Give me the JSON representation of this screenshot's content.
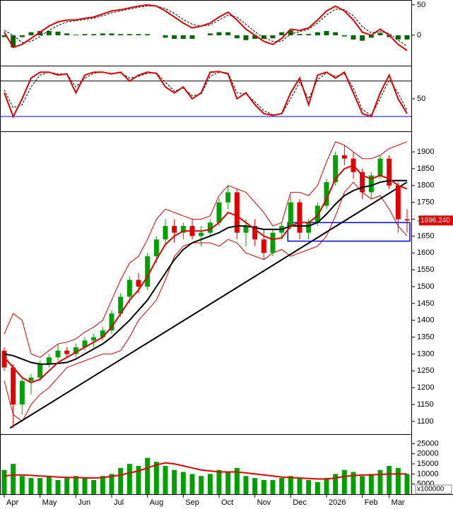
{
  "chart_data": {
    "type": "candlestick",
    "up_color": "#00a000",
    "down_color": "#e00000",
    "months": [
      {
        "label": "Apr",
        "candles": [
          [
            1310,
            1320,
            1250,
            1260
          ],
          [
            1260,
            1270,
            1080,
            1150
          ],
          [
            1150,
            1230,
            1120,
            1220
          ],
          [
            1220,
            1240,
            1180,
            1230
          ]
        ]
      },
      {
        "label": "May",
        "candles": [
          [
            1230,
            1280,
            1220,
            1270
          ],
          [
            1270,
            1300,
            1260,
            1290
          ],
          [
            1290,
            1330,
            1280,
            1310
          ],
          [
            1310,
            1320,
            1290,
            1300
          ]
        ]
      },
      {
        "label": "Jun",
        "candles": [
          [
            1300,
            1330,
            1290,
            1320
          ],
          [
            1320,
            1350,
            1310,
            1340
          ],
          [
            1340,
            1360,
            1320,
            1350
          ],
          [
            1350,
            1380,
            1340,
            1370
          ]
        ]
      },
      {
        "label": "Jul",
        "candles": [
          [
            1370,
            1430,
            1360,
            1420
          ],
          [
            1420,
            1480,
            1410,
            1470
          ],
          [
            1470,
            1530,
            1450,
            1520
          ],
          [
            1520,
            1540,
            1480,
            1500
          ]
        ]
      },
      {
        "label": "Aug",
        "candles": [
          [
            1500,
            1600,
            1490,
            1590
          ],
          [
            1590,
            1650,
            1570,
            1640
          ],
          [
            1640,
            1700,
            1620,
            1680
          ],
          [
            1680,
            1700,
            1630,
            1660
          ]
        ]
      },
      {
        "label": "Sep",
        "candles": [
          [
            1660,
            1690,
            1640,
            1680
          ],
          [
            1680,
            1700,
            1640,
            1650
          ],
          [
            1650,
            1680,
            1620,
            1660
          ],
          [
            1660,
            1700,
            1650,
            1690
          ]
        ]
      },
      {
        "label": "Oct",
        "candles": [
          [
            1690,
            1760,
            1680,
            1750
          ],
          [
            1750,
            1800,
            1730,
            1780
          ],
          [
            1780,
            1790,
            1640,
            1660
          ],
          [
            1660,
            1700,
            1620,
            1680
          ]
        ]
      },
      {
        "label": "Nov",
        "candles": [
          [
            1680,
            1700,
            1620,
            1640
          ],
          [
            1640,
            1670,
            1580,
            1600
          ],
          [
            1600,
            1670,
            1590,
            1660
          ],
          [
            1660,
            1690,
            1640,
            1680
          ]
        ]
      },
      {
        "label": "Dec",
        "candles": [
          [
            1680,
            1770,
            1670,
            1750
          ],
          [
            1750,
            1760,
            1640,
            1660
          ],
          [
            1660,
            1700,
            1640,
            1690
          ],
          [
            1690,
            1750,
            1680,
            1740
          ]
        ]
      },
      {
        "label": "2026",
        "candles": [
          [
            1740,
            1820,
            1730,
            1810
          ],
          [
            1810,
            1900,
            1800,
            1890
          ],
          [
            1890,
            1920,
            1860,
            1880
          ],
          [
            1880,
            1900,
            1820,
            1840
          ]
        ]
      },
      {
        "label": "Feb",
        "candles": [
          [
            1840,
            1850,
            1760,
            1780
          ],
          [
            1780,
            1840,
            1760,
            1830
          ],
          [
            1830,
            1890,
            1820,
            1880
          ]
        ]
      },
      {
        "label": "Mar",
        "candles": [
          [
            1880,
            1890,
            1790,
            1800
          ],
          [
            1800,
            1810,
            1660,
            1700
          ],
          [
            1700,
            1730,
            1660,
            1696.24
          ]
        ]
      }
    ],
    "ma20": {
      "color": "#e00000",
      "values": [
        1290,
        1260,
        1230,
        1215,
        1225,
        1250,
        1275,
        1290,
        1305,
        1320,
        1335,
        1350,
        1380,
        1420,
        1460,
        1490,
        1530,
        1580,
        1625,
        1650,
        1665,
        1665,
        1665,
        1670,
        1690,
        1720,
        1710,
        1690,
        1670,
        1650,
        1640,
        1645,
        1680,
        1690,
        1690,
        1710,
        1760,
        1820,
        1850,
        1860,
        1830,
        1820,
        1830,
        1820,
        1800,
        1790
      ]
    },
    "ma50": {
      "color": "#000000",
      "values": [
        1300,
        1295,
        1285,
        1275,
        1270,
        1270,
        1272,
        1275,
        1285,
        1300,
        1315,
        1330,
        1350,
        1375,
        1400,
        1430,
        1460,
        1500,
        1540,
        1580,
        1610,
        1630,
        1640,
        1650,
        1660,
        1675,
        1680,
        1680,
        1675,
        1670,
        1670,
        1670,
        1680,
        1680,
        1680,
        1690,
        1715,
        1745,
        1770,
        1785,
        1795,
        1800,
        1810,
        1815,
        1815,
        1815
      ]
    },
    "bb_upper": {
      "color": "#e00000",
      "values": [
        1360,
        1420,
        1400,
        1300,
        1290,
        1310,
        1330,
        1335,
        1345,
        1365,
        1380,
        1400,
        1460,
        1520,
        1570,
        1590,
        1640,
        1700,
        1730,
        1720,
        1710,
        1700,
        1700,
        1710,
        1770,
        1800,
        1790,
        1780,
        1750,
        1720,
        1680,
        1690,
        1780,
        1780,
        1770,
        1800,
        1870,
        1930,
        1920,
        1900,
        1880,
        1880,
        1890,
        1910,
        1920,
        1930
      ]
    },
    "bb_lower": {
      "color": "#e00000",
      "values": [
        1220,
        1120,
        1100,
        1150,
        1180,
        1200,
        1230,
        1260,
        1270,
        1280,
        1290,
        1300,
        1300,
        1310,
        1350,
        1400,
        1430,
        1460,
        1520,
        1590,
        1620,
        1630,
        1630,
        1630,
        1620,
        1640,
        1630,
        1600,
        1590,
        1580,
        1600,
        1610,
        1590,
        1600,
        1610,
        1620,
        1650,
        1710,
        1780,
        1810,
        1780,
        1760,
        1770,
        1730,
        1680,
        1650
      ]
    },
    "trendline": {
      "color": "#000000",
      "start": 1080,
      "end": 1810
    },
    "box": {
      "color": "#0000cc",
      "low": 1635,
      "high": 1690
    },
    "last_price": {
      "value": 1696.24,
      "label": "1696.240",
      "color": "#e00000"
    },
    "ylim": [
      1062,
      1961
    ],
    "yticks": [
      1100,
      1150,
      1200,
      1250,
      1300,
      1350,
      1400,
      1450,
      1500,
      1550,
      1600,
      1650,
      1700,
      1750,
      1800,
      1850,
      1900
    ],
    "macd": {
      "ylim": [
        -50,
        58
      ],
      "yticks": [
        0,
        50
      ],
      "line": {
        "color": "#e00000",
        "values": [
          5,
          -20,
          -15,
          -5,
          5,
          15,
          22,
          25,
          25,
          28,
          30,
          35,
          40,
          42,
          45,
          48,
          50,
          48,
          40,
          30,
          20,
          12,
          15,
          20,
          30,
          38,
          25,
          10,
          0,
          -10,
          -15,
          -5,
          10,
          8,
          12,
          25,
          40,
          48,
          40,
          25,
          5,
          0,
          10,
          0,
          -15,
          -25
        ]
      },
      "signal": {
        "color": "#000000",
        "values": [
          8,
          0,
          -12,
          -10,
          -2,
          8,
          16,
          22,
          24,
          26,
          28,
          32,
          37,
          40,
          43,
          46,
          48,
          48,
          44,
          36,
          26,
          18,
          15,
          17,
          25,
          33,
          30,
          18,
          6,
          -4,
          -10,
          -10,
          2,
          6,
          10,
          20,
          33,
          43,
          42,
          32,
          14,
          4,
          6,
          3,
          -8,
          -18
        ]
      },
      "histogram": {
        "color": "#006600",
        "values": [
          -3,
          -20,
          -3,
          5,
          7,
          7,
          6,
          3,
          1,
          2,
          2,
          3,
          3,
          2,
          2,
          2,
          2,
          0,
          -4,
          -6,
          -6,
          -6,
          0,
          3,
          5,
          5,
          -5,
          -8,
          -6,
          -6,
          -5,
          5,
          8,
          2,
          2,
          5,
          7,
          5,
          -2,
          -7,
          -9,
          -4,
          4,
          -3,
          -7,
          -7
        ]
      }
    },
    "stochastic": {
      "ylim": [
        -5,
        106
      ],
      "yticks": [
        50
      ],
      "levels": [
        {
          "value": 80,
          "color": "#000000"
        },
        {
          "value": 20,
          "color": "#0000cc"
        }
      ],
      "k": {
        "color": "#e00000",
        "values": [
          60,
          20,
          50,
          85,
          95,
          95,
          90,
          92,
          60,
          90,
          95,
          95,
          92,
          95,
          80,
          90,
          95,
          93,
          70,
          60,
          70,
          50,
          60,
          95,
          96,
          92,
          50,
          60,
          40,
          25,
          22,
          25,
          60,
          85,
          40,
          90,
          95,
          85,
          95,
          60,
          25,
          20,
          60,
          90,
          50,
          25
        ]
      },
      "d": {
        "color": "#000000",
        "values": [
          65,
          35,
          40,
          70,
          90,
          95,
          92,
          92,
          70,
          85,
          93,
          95,
          93,
          94,
          85,
          88,
          93,
          94,
          78,
          63,
          68,
          55,
          58,
          88,
          95,
          94,
          60,
          58,
          45,
          30,
          23,
          24,
          50,
          78,
          50,
          82,
          94,
          88,
          92,
          68,
          32,
          22,
          50,
          82,
          60,
          30
        ]
      }
    },
    "volume": {
      "ylim": [
        0,
        29700
      ],
      "yticks": [
        5000,
        10000,
        15000,
        20000,
        25000
      ],
      "unit_label": "x100000",
      "color": "#00a000",
      "values": [
        12000,
        15000,
        9000,
        8000,
        8000,
        9000,
        7000,
        8000,
        9000,
        8000,
        7000,
        9000,
        10000,
        13000,
        15000,
        14000,
        18000,
        16000,
        14000,
        12000,
        11000,
        10000,
        9000,
        10000,
        12000,
        11000,
        13000,
        9000,
        8000,
        7000,
        7000,
        8000,
        9000,
        8000,
        7000,
        6000,
        8000,
        10000,
        12000,
        11000,
        9000,
        10000,
        12000,
        14000,
        13000,
        10000
      ],
      "ma": {
        "color": "#e00000",
        "values": [
          9000,
          9500,
          9500,
          9300,
          9000,
          8800,
          8500,
          8300,
          8200,
          8100,
          8000,
          8200,
          8800,
          9500,
          10500,
          11500,
          13000,
          14500,
          15500,
          15000,
          14000,
          13000,
          12000,
          11500,
          11000,
          11000,
          11000,
          10500,
          10000,
          9500,
          9000,
          8500,
          8200,
          8000,
          7800,
          7500,
          7500,
          8000,
          8800,
          9200,
          9500,
          9500,
          9800,
          10000,
          10000,
          10000
        ]
      }
    }
  }
}
